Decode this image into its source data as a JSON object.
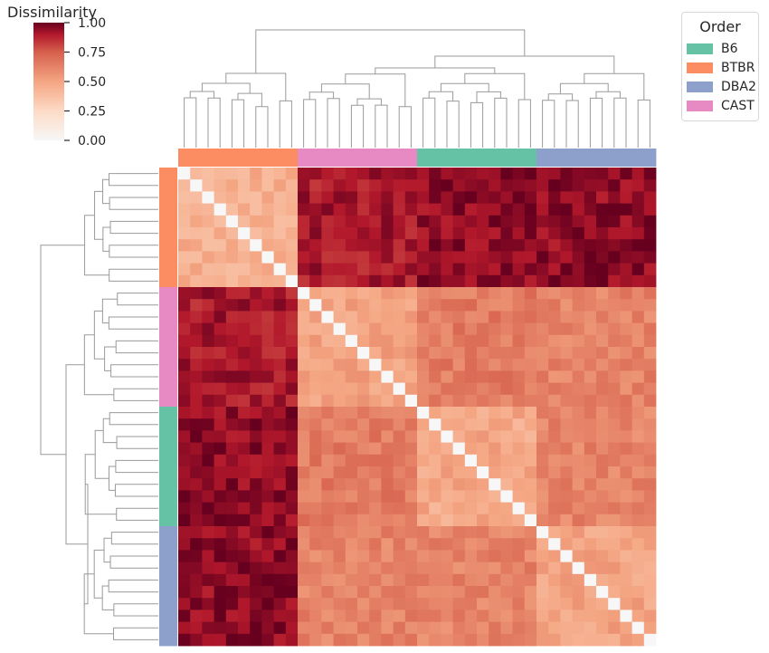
{
  "chart_data": {
    "type": "heatmap",
    "title": "",
    "colorbar": {
      "label": "Dissimilarity",
      "range": [
        0,
        1
      ],
      "ticks": [
        "0.00",
        "0.25",
        "0.50",
        "0.75",
        "1.00"
      ],
      "colormap": "RdBu_r (white to dark red)"
    },
    "legend": {
      "title": "Order",
      "entries": [
        {
          "name": "B6",
          "color": "#66c2a5"
        },
        {
          "name": "BTBR",
          "color": "#fc8d62"
        },
        {
          "name": "DBA2",
          "color": "#8da0cb"
        },
        {
          "name": "CAST",
          "color": "#e78ac3"
        }
      ]
    },
    "row_order_groups": [
      "BTBR",
      "CAST",
      "B6",
      "DBA2"
    ],
    "samples_per_group": 10,
    "group_dissimilarity": {
      "BTBR": {
        "BTBR": 0.45,
        "CAST": 0.9,
        "B6": 0.95,
        "DBA2": 0.95
      },
      "CAST": {
        "BTBR": 0.9,
        "CAST": 0.5,
        "B6": 0.65,
        "DBA2": 0.62
      },
      "B6": {
        "BTBR": 0.95,
        "CAST": 0.65,
        "B6": 0.48,
        "DBA2": 0.62
      },
      "DBA2": {
        "BTBR": 0.95,
        "CAST": 0.62,
        "B6": 0.62,
        "DBA2": 0.5
      }
    },
    "diagonal_value": 0.0,
    "dendrogram": "hierarchical clustering on rows and columns"
  }
}
